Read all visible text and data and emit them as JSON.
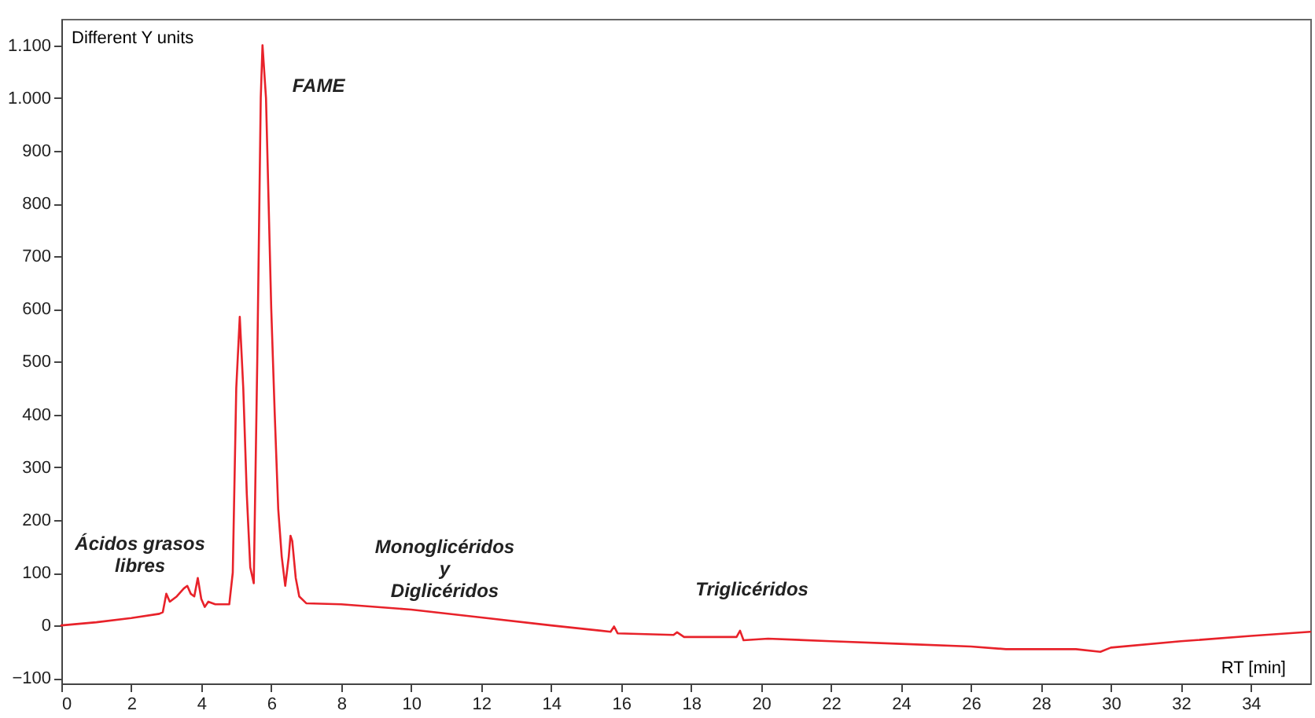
{
  "chart_data": {
    "type": "line",
    "xlabel": "RT [min]",
    "ylabel": "Different Y units",
    "x": [
      0,
      1,
      2,
      2.8,
      2.9,
      3.0,
      3.1,
      3.3,
      3.5,
      3.6,
      3.7,
      3.8,
      3.9,
      4.0,
      4.1,
      4.2,
      4.4,
      4.8,
      4.9,
      5.0,
      5.1,
      5.2,
      5.3,
      5.4,
      5.5,
      5.6,
      5.7,
      5.75,
      5.85,
      6.0,
      6.1,
      6.2,
      6.3,
      6.4,
      6.5,
      6.55,
      6.6,
      6.7,
      6.8,
      7.0,
      8,
      10,
      12,
      14,
      15.7,
      15.8,
      15.9,
      17.5,
      17.6,
      17.8,
      19.3,
      19.4,
      19.5,
      20.2,
      22,
      24,
      26,
      27,
      29,
      29.7,
      30,
      32,
      34,
      35.7
    ],
    "series": [
      {
        "color": "#e8222a",
        "values": [
          0,
          6,
          14,
          22,
          25,
          60,
          45,
          55,
          70,
          75,
          60,
          55,
          90,
          50,
          35,
          45,
          40,
          40,
          100,
          450,
          585,
          450,
          250,
          110,
          80,
          500,
          1000,
          1100,
          1000,
          600,
          400,
          220,
          130,
          75,
          130,
          170,
          160,
          90,
          55,
          42,
          40,
          30,
          15,
          0,
          -12,
          -2,
          -15,
          -18,
          -13,
          -22,
          -22,
          -10,
          -28,
          -25,
          -30,
          -35,
          -40,
          -45,
          -45,
          -50,
          -42,
          -30,
          -20,
          -12
        ]
      }
    ],
    "xlim": [
      0,
      35.7
    ],
    "xticks": [
      0,
      2,
      4,
      6,
      8,
      10,
      12,
      14,
      16,
      18,
      20,
      22,
      24,
      26,
      28,
      30,
      32,
      34
    ],
    "ylim": [
      -110,
      1150
    ],
    "yticks": [
      -100,
      0,
      100,
      200,
      300,
      400,
      500,
      600,
      700,
      800,
      900,
      {
        "value": 1000,
        "label": "1.000"
      },
      {
        "value": 1100,
        "label": "1.100"
      }
    ],
    "grid": false,
    "marker": "none",
    "line_style": "solid",
    "annotations": [
      "FAME",
      "Ácidos grasos\nlibres",
      "Monoglicéridos\ny\nDiglicéridos",
      "Triglicéridos"
    ]
  }
}
